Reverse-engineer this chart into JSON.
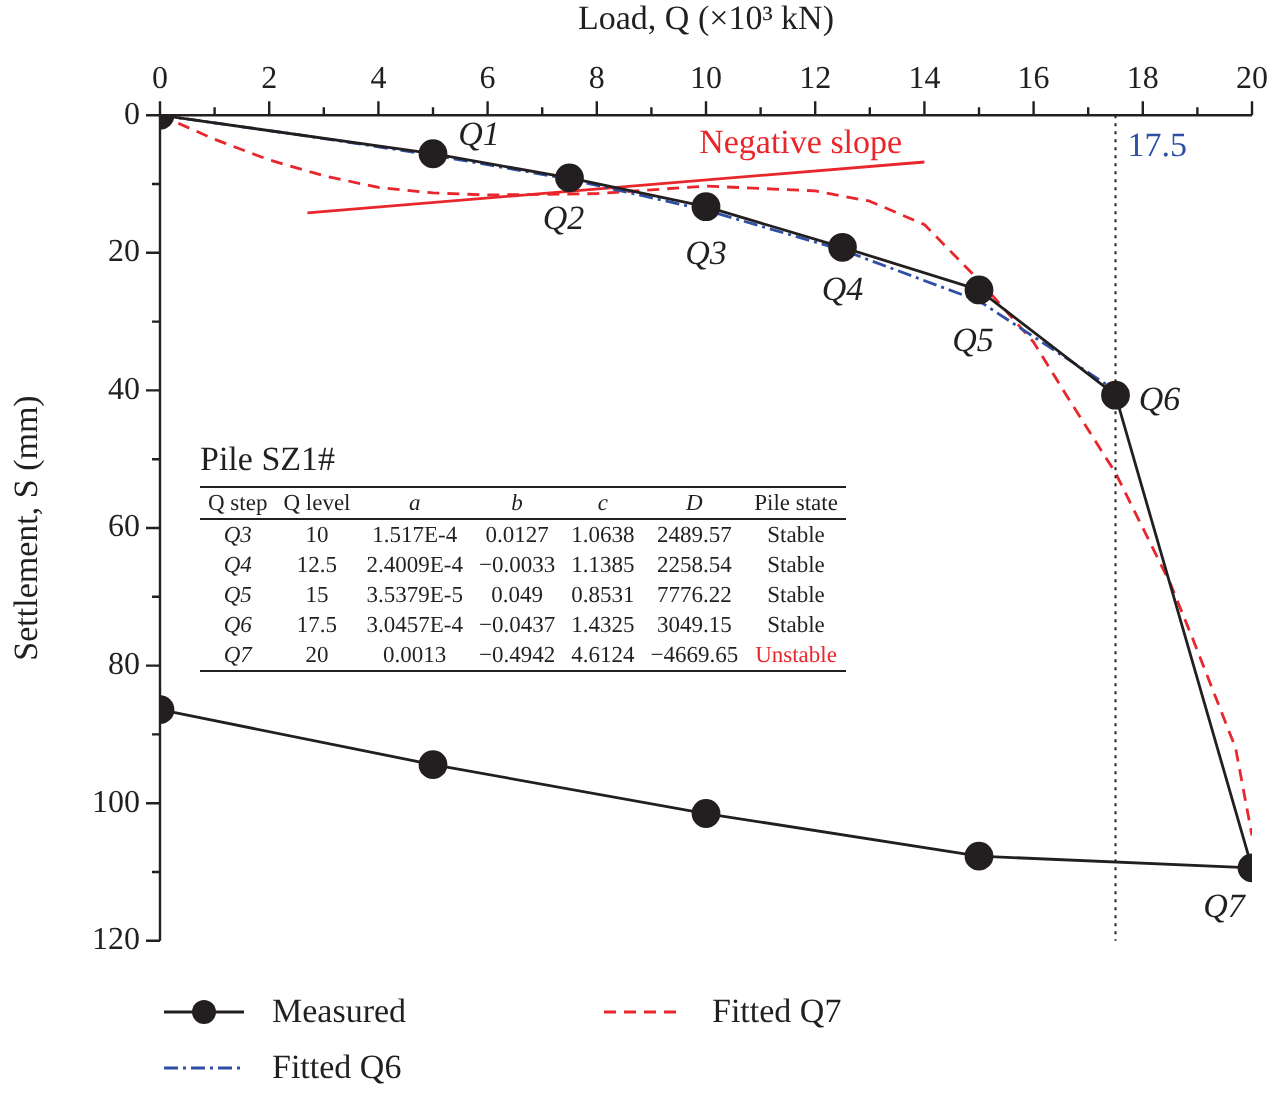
{
  "chart_data": {
    "type": "line",
    "xlabel": "Load, Q (×10³ kN)",
    "ylabel": "Settlement, S (mm)",
    "xlim": [
      0,
      20
    ],
    "xticks": [
      0,
      2,
      4,
      6,
      8,
      10,
      12,
      14,
      16,
      18,
      20
    ],
    "ylim": [
      120,
      0
    ],
    "yticks": [
      0,
      20,
      40,
      60,
      80,
      100,
      120
    ],
    "grid": false,
    "legend": "bottom",
    "series": [
      {
        "name": "Measured",
        "color": "#231f20",
        "marker": "circle",
        "line_style": "solid",
        "x": [
          0,
          5,
          7.5,
          10,
          12.5,
          15,
          17.5,
          20,
          15,
          10,
          5,
          0
        ],
        "values": [
          0,
          5.6,
          9.1,
          13.3,
          19.2,
          25.4,
          40.7,
          109.4,
          107.7,
          101.5,
          94.4,
          86.4
        ]
      },
      {
        "name": "Fitted Q6",
        "color": "#2e4fa3",
        "marker": "none",
        "line_style": "dashdot",
        "x": [
          0,
          2.5,
          5,
          7.5,
          10,
          12.5,
          15,
          17.5
        ],
        "values": [
          0,
          2.8,
          5.8,
          9.3,
          13.8,
          19.6,
          27,
          40
        ]
      },
      {
        "name": "Fitted Q7",
        "color": "#e8262b",
        "marker": "none",
        "line_style": "dashed",
        "x": [
          0,
          1,
          2,
          3,
          4,
          5,
          6,
          8,
          10,
          12,
          13,
          14,
          15,
          16,
          16.6,
          17.5,
          18.5,
          18.9,
          19.7,
          20
        ],
        "values": [
          0,
          3.5,
          6.5,
          8.8,
          10.5,
          11.3,
          11.6,
          11.4,
          10.3,
          11,
          12.5,
          15.9,
          24,
          33,
          40.7,
          52,
          68,
          75.8,
          92,
          104.7
        ]
      },
      {
        "color": "#e8262b",
        "marker": "none",
        "line_style": "solid",
        "x": [
          2.7,
          14
        ],
        "values": [
          14.2,
          6.8
        ]
      }
    ],
    "ref_lines": [
      {
        "axis": "x",
        "value": 17.5,
        "label": "17.5",
        "line_style": "dotted",
        "color": "#231f20"
      }
    ],
    "annotations": [
      {
        "text": "Q1",
        "x": 5,
        "y": 5.6
      },
      {
        "text": "Q2",
        "x": 7.5,
        "y": 9.1
      },
      {
        "text": "Q3",
        "x": 10,
        "y": 13.3
      },
      {
        "text": "Q4",
        "x": 12.5,
        "y": 19.2
      },
      {
        "text": "Q5",
        "x": 15,
        "y": 25.4
      },
      {
        "text": "Q6",
        "x": 17.5,
        "y": 40.7
      },
      {
        "text": "Q7",
        "x": 20,
        "y": 109.4
      },
      {
        "text": "Negative slope",
        "x": 12.1,
        "y": 8
      },
      "Pile SZ1#",
      "Q step",
      "Q level",
      "a",
      "b",
      "c",
      "D",
      "Pile state",
      "Q3",
      "10",
      "1.517E-4",
      "0.0127",
      "1.0638",
      "2489.57",
      "Stable",
      "Q4",
      "12.5",
      "2.4009E-4",
      "−0.0033",
      "1.1385",
      "2258.54",
      "Stable",
      "Q5",
      "15",
      "3.5379E-5",
      "0.049",
      "0.8531",
      "7776.22",
      "Stable",
      "Q6",
      "17.5",
      "3.0457E-4",
      "−0.0437",
      "1.4325",
      "3049.15",
      "Stable",
      "Q7",
      "20",
      "0.0013",
      "−0.4942",
      "4.6124",
      "−4669.65",
      "Unstable"
    ]
  }
}
